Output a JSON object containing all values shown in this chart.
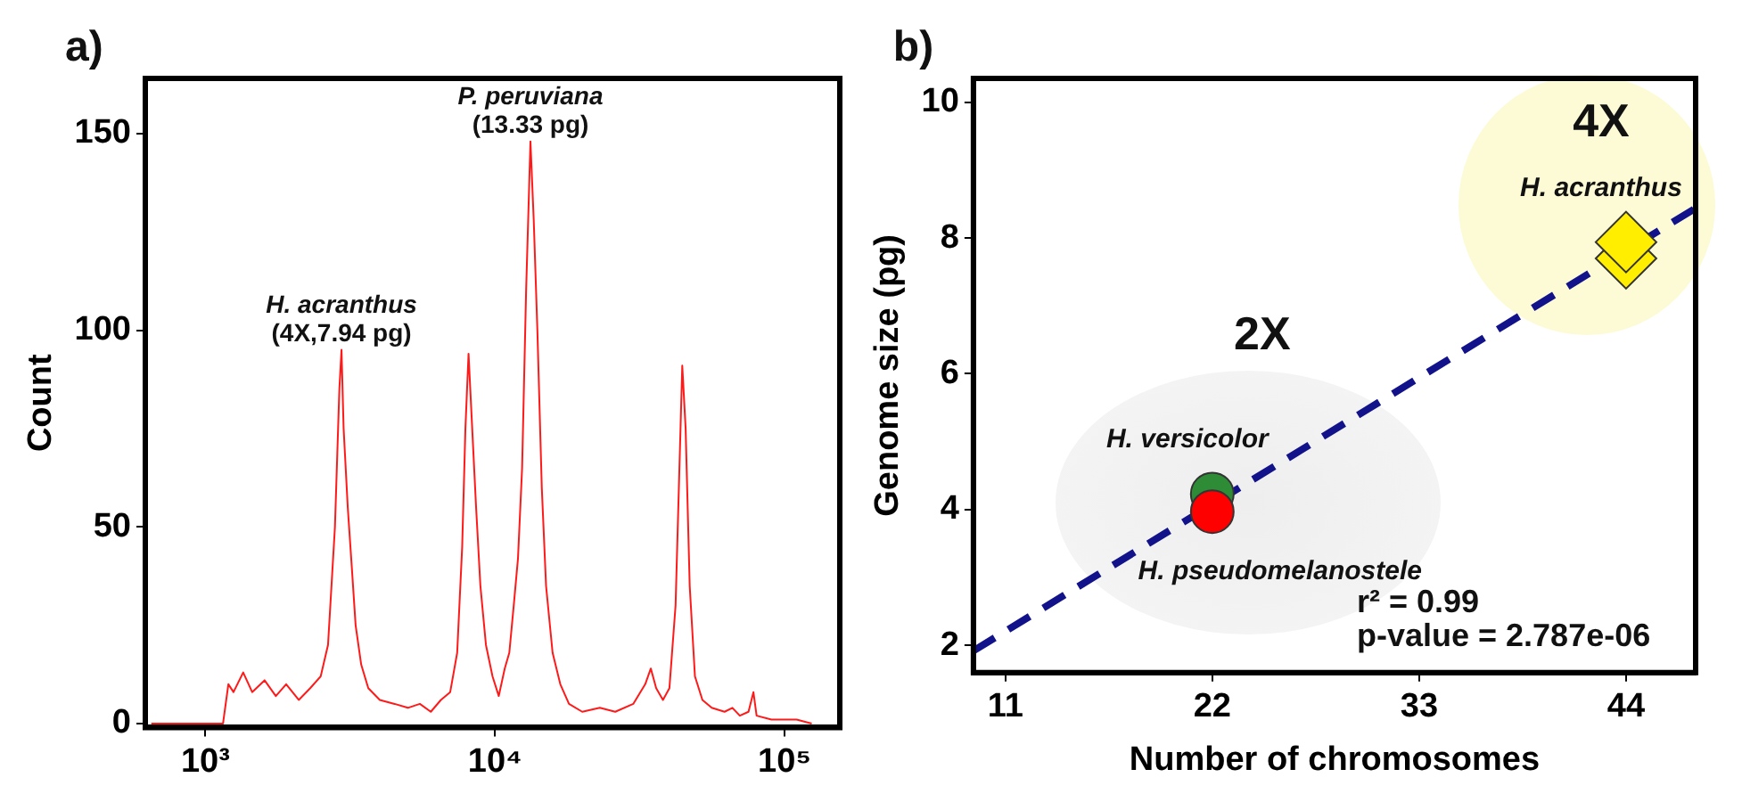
{
  "chart_data": [
    {
      "type": "line",
      "title": "a)",
      "ylabel": "Count",
      "color": "#ff1a1a",
      "log": "x",
      "marker": "none",
      "grid": false,
      "legend": false,
      "x": [
        650,
        1000,
        1150,
        1200,
        1250,
        1350,
        1450,
        1600,
        1750,
        1900,
        2100,
        2300,
        2500,
        2650,
        2800,
        2900,
        2950,
        3000,
        3100,
        3200,
        3300,
        3450,
        3650,
        4000,
        4500,
        5000,
        5500,
        6000,
        6500,
        7000,
        7400,
        7700,
        7900,
        8100,
        8300,
        8600,
        8900,
        9300,
        9800,
        10300,
        10800,
        11200,
        11600,
        12000,
        12400,
        12800,
        13250,
        13600,
        14000,
        14500,
        15000,
        15800,
        16800,
        18000,
        20000,
        23000,
        26000,
        30000,
        33000,
        34500,
        36000,
        38000,
        40000,
        42000,
        43500,
        44300,
        45500,
        47000,
        49000,
        52000,
        56000,
        62000,
        66000,
        70000,
        75000,
        78000,
        80000,
        90000,
        110000,
        124000
      ],
      "values": [
        0,
        0,
        0,
        10,
        8,
        13,
        8,
        11,
        7,
        10,
        6,
        9,
        12,
        20,
        50,
        85,
        95,
        75,
        55,
        40,
        25,
        15,
        9,
        6,
        5,
        4,
        5,
        3,
        6,
        8,
        18,
        45,
        75,
        94,
        78,
        55,
        35,
        20,
        12,
        7,
        14,
        18,
        30,
        42,
        65,
        110,
        148,
        128,
        100,
        60,
        35,
        18,
        10,
        5,
        3,
        4,
        3,
        5,
        10,
        14,
        9,
        6,
        9,
        30,
        70,
        91,
        75,
        35,
        12,
        6,
        4,
        3,
        4,
        2,
        3,
        8,
        2,
        1,
        1,
        0
      ],
      "xlim": [
        620,
        155000
      ],
      "xticks": [
        {
          "value": 1000,
          "label": "10³"
        },
        {
          "value": 10000,
          "label": "10⁴"
        },
        {
          "value": 100000,
          "label": "10⁵"
        }
      ],
      "ylim": [
        -1,
        164
      ],
      "yticks": [
        0,
        50,
        100,
        150
      ],
      "annotations": [
        {
          "text": "H. acranthus\n(4X,7.94 pg)",
          "x": 2950,
          "y": 95
        },
        {
          "text": "P. peruviana\n(13.33 pg)",
          "x": 13250,
          "y": 148
        }
      ]
    },
    {
      "type": "scatter",
      "title": "b)",
      "xlabel": "Number of chromosomes",
      "ylabel": "Genome size (pg)",
      "grid": false,
      "legend": false,
      "xlim": [
        9.3,
        47.7
      ],
      "xticks": [
        11,
        22,
        33,
        44
      ],
      "ylim": [
        1.6,
        10.35
      ],
      "yticks": [
        2,
        4,
        6,
        8,
        10
      ],
      "series": [
        {
          "name": "H. pseudomelanostele",
          "marker": "circle",
          "color": "#ff0000",
          "x": [
            22
          ],
          "values": [
            3.97
          ]
        },
        {
          "name": "H. versicolor",
          "marker": "circle",
          "color": "#2e8b36",
          "x": [
            22
          ],
          "values": [
            4.23
          ]
        },
        {
          "name": "H. acranthus",
          "marker": "diamond",
          "color": "#ffee00",
          "x": [
            44,
            44
          ],
          "values": [
            7.7,
            7.94
          ]
        },
        {
          "type": "line",
          "line_style": "dashed",
          "color": "#12128a",
          "x": [
            9.3,
            47.7
          ],
          "values": [
            1.92,
            8.44
          ]
        }
      ],
      "annotations": [
        "2X",
        "4X",
        "r² = 0.99",
        "p-value = 2.787e-06"
      ]
    }
  ]
}
